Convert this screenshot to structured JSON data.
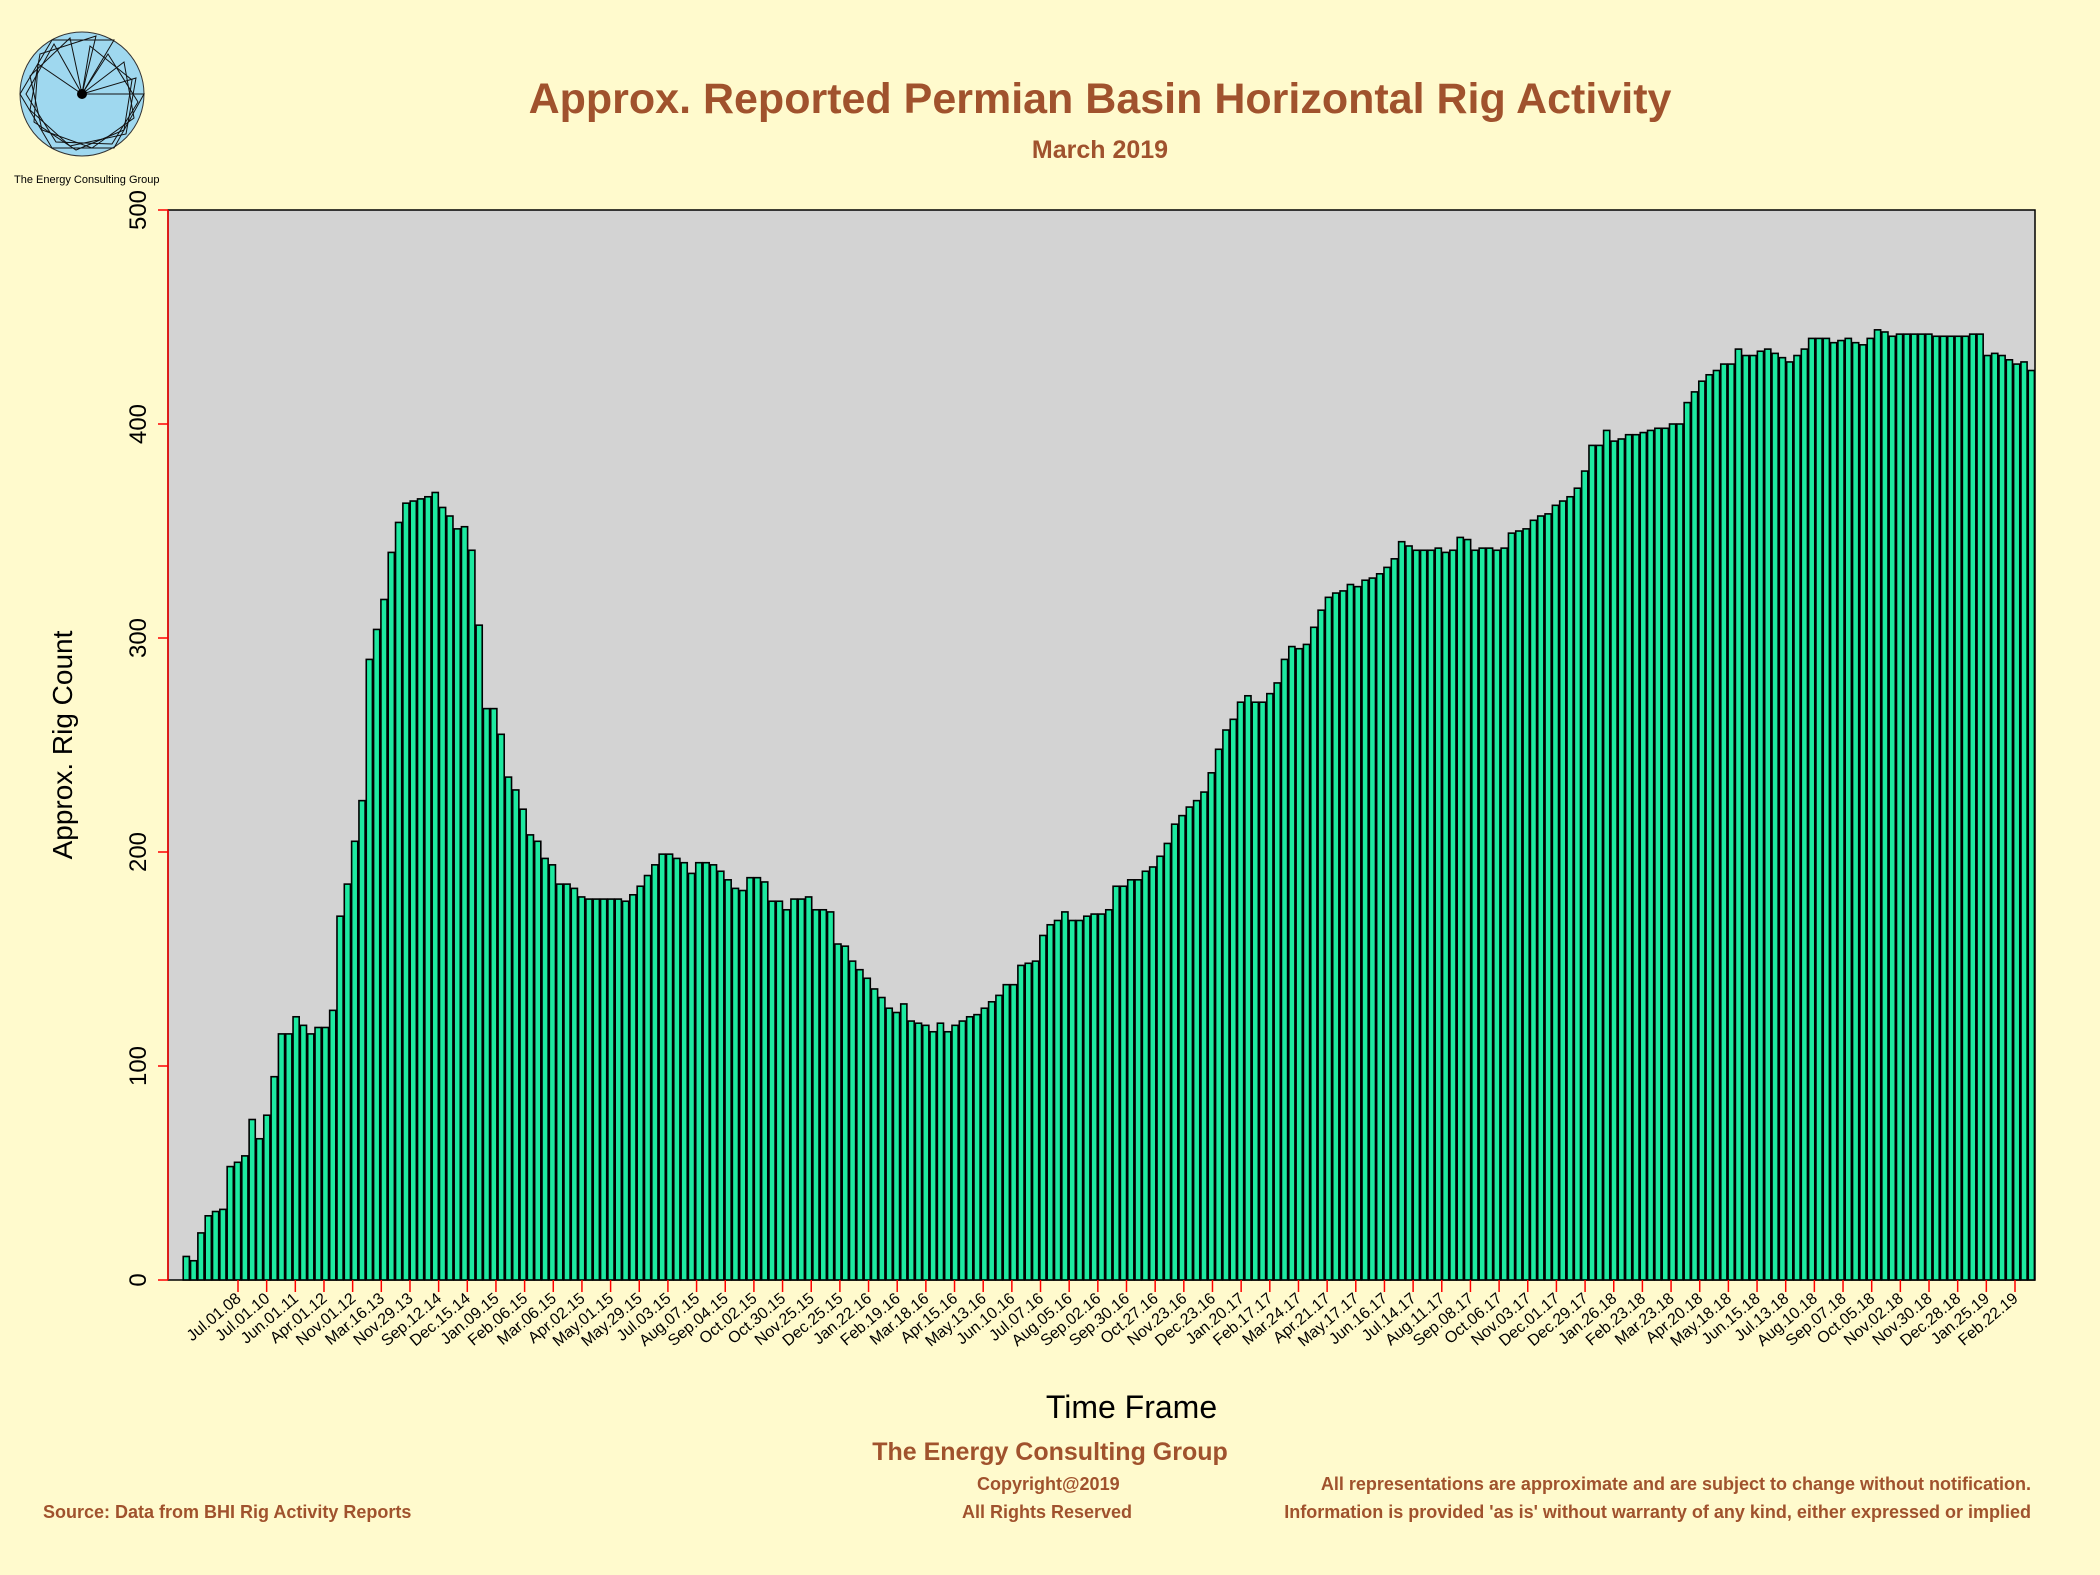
{
  "header": {
    "title": "Approx. Reported Permian Basin Horizontal Rig Activity",
    "subtitle": "March 2019"
  },
  "logo": {
    "caption": "The Energy Consulting Group",
    "icon": "spiral-logo-icon"
  },
  "footer": {
    "org": "The Energy Consulting Group",
    "copyright": "Copyright@2019",
    "rights": "All Rights Reserved",
    "source": "Source: Data from BHI Rig Activity Reports",
    "disclaimer1": "All representations are approximate and are subject to change without notification.",
    "disclaimer2": "Information is provided 'as is' without warranty of any kind, either expressed or implied"
  },
  "colors": {
    "background": "#fffacd",
    "plot_background": "#d3d3d3",
    "bar_fill": "#1de9a0",
    "bar_stroke": "#000000",
    "title": "#a0522d",
    "axis_tick": "#ff0000"
  },
  "chart_data": {
    "type": "bar",
    "title": "Approx. Reported Permian Basin Horizontal Rig Activity",
    "subtitle": "March 2019",
    "xlabel": "Time Frame",
    "ylabel": "Approx. Rig Count",
    "ylim": [
      0,
      500
    ],
    "yticks": [
      0,
      100,
      200,
      300,
      400,
      500
    ],
    "grid": false,
    "xtick_labels": [
      "Jul.01.08",
      "Jul.01.10",
      "Jun.01.11",
      "Apr.01.12",
      "Nov.01.12",
      "Mar.16.13",
      "Nov.29.13",
      "Sep.12.14",
      "Dec.15.14",
      "Jan.09.15",
      "Feb.06.15",
      "Mar.06.15",
      "Apr.02.15",
      "May.01.15",
      "May.29.15",
      "Jul.03.15",
      "Aug.07.15",
      "Sep.04.15",
      "Oct.02.15",
      "Oct.30.15",
      "Nov.25.15",
      "Dec.25.15",
      "Jan.22.16",
      "Feb.19.16",
      "Mar.18.16",
      "Apr.15.16",
      "May.13.16",
      "Jun.10.16",
      "Jul.07.16",
      "Aug.05.16",
      "Sep.02.16",
      "Sep.30.16",
      "Oct.27.16",
      "Nov.23.16",
      "Dec.23.16",
      "Jan.20.17",
      "Feb.17.17",
      "Mar.24.17",
      "Apr.21.17",
      "May.17.17",
      "Jun.16.17",
      "Jul.14.17",
      "Aug.11.17",
      "Sep.08.17",
      "Oct.06.17",
      "Nov.03.17",
      "Dec.01.17",
      "Dec.29.17",
      "Jan.26.18",
      "Feb.23.18",
      "Mar.23.18",
      "Apr.20.18",
      "May.18.18",
      "Jun.15.18",
      "Jul.13.18",
      "Aug.10.18",
      "Sep.07.18",
      "Oct.05.18",
      "Nov.02.18",
      "Nov.30.18",
      "Dec.28.18",
      "Jan.25.19",
      "Feb.22.19"
    ],
    "values": [
      0,
      0,
      11,
      9,
      22,
      30,
      32,
      33,
      53,
      55,
      58,
      75,
      66,
      77,
      95,
      115,
      115,
      123,
      119,
      115,
      118,
      118,
      126,
      170,
      185,
      205,
      224,
      290,
      304,
      318,
      340,
      354,
      363,
      364,
      365,
      366,
      368,
      361,
      357,
      351,
      352,
      341,
      306,
      267,
      267,
      255,
      235,
      229,
      220,
      208,
      205,
      197,
      194,
      185,
      185,
      183,
      179,
      178,
      178,
      178,
      178,
      178,
      177,
      180,
      184,
      189,
      194,
      199,
      199,
      197,
      195,
      190,
      195,
      195,
      194,
      191,
      187,
      183,
      182,
      188,
      188,
      186,
      177,
      177,
      173,
      178,
      178,
      179,
      173,
      173,
      172,
      157,
      156,
      149,
      145,
      141,
      136,
      132,
      127,
      125,
      129,
      121,
      120,
      119,
      116,
      120,
      116,
      119,
      121,
      123,
      124,
      127,
      130,
      133,
      138,
      138,
      147,
      148,
      149,
      161,
      166,
      168,
      172,
      168,
      168,
      170,
      171,
      171,
      173,
      184,
      184,
      187,
      187,
      191,
      193,
      198,
      204,
      213,
      217,
      221,
      224,
      228,
      237,
      248,
      257,
      262,
      270,
      273,
      270,
      270,
      274,
      279,
      290,
      296,
      295,
      297,
      305,
      313,
      319,
      321,
      322,
      325,
      324,
      327,
      328,
      330,
      333,
      337,
      345,
      343,
      341,
      341,
      341,
      342,
      340,
      341,
      347,
      346,
      341,
      342,
      342,
      341,
      342,
      349,
      350,
      351,
      355,
      357,
      358,
      362,
      364,
      366,
      370,
      378,
      390,
      390,
      397,
      392,
      393,
      395,
      395,
      396,
      397,
      398,
      398,
      400,
      400,
      410,
      415,
      420,
      423,
      425,
      428,
      428,
      435,
      432,
      432,
      434,
      435,
      433,
      431,
      429,
      432,
      435,
      440,
      440,
      440,
      438,
      439,
      440,
      438,
      437,
      440,
      444,
      443,
      441,
      442,
      442,
      442,
      442,
      442,
      441,
      441,
      441,
      441,
      441,
      442,
      442,
      432,
      433,
      432,
      430,
      428,
      429,
      425
    ]
  }
}
